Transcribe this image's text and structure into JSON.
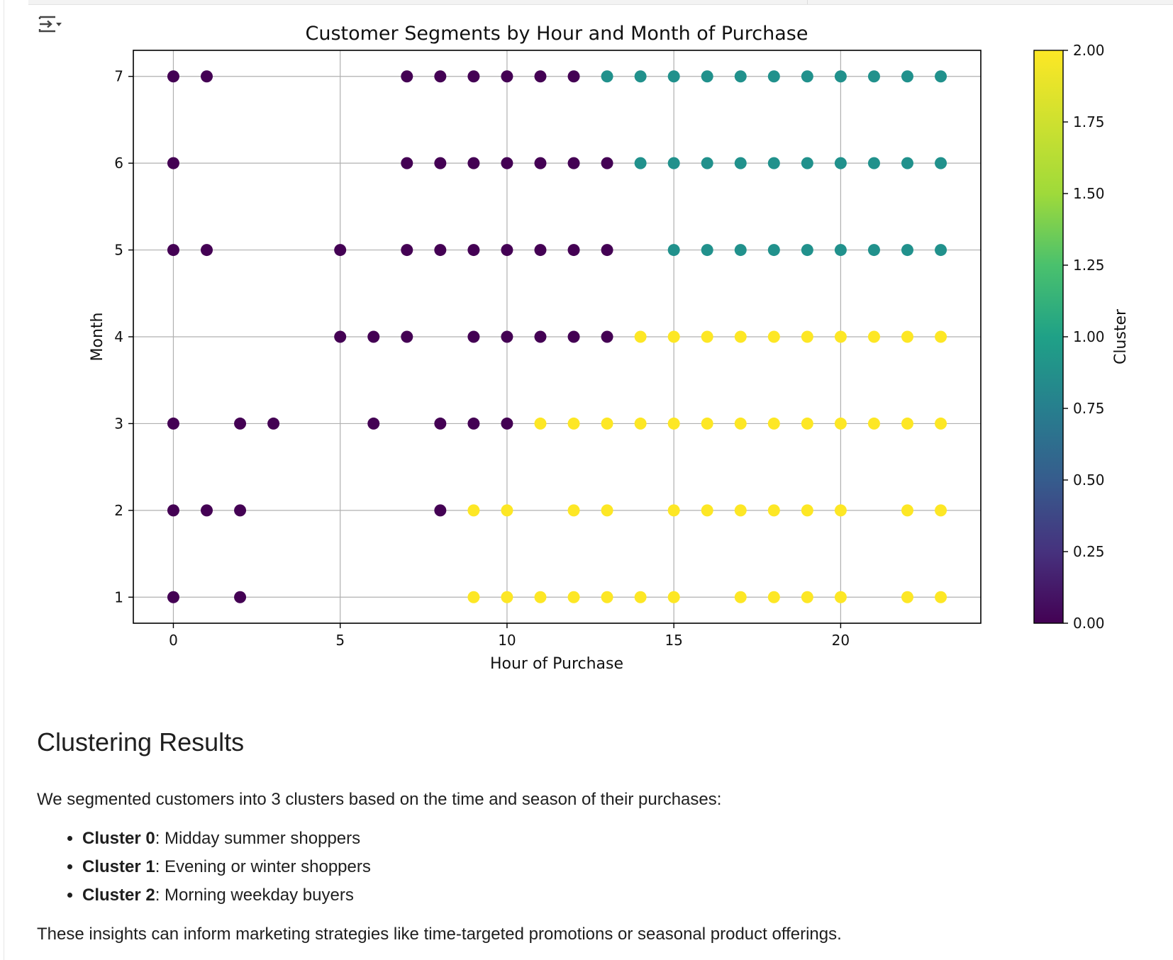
{
  "icons": {
    "output_toggle": "collapse-output-icon"
  },
  "chart_data": {
    "type": "scatter",
    "title": "Customer Segments by Hour and Month of Purchase",
    "xlabel": "Hour of Purchase",
    "ylabel": "Month",
    "xlim": [
      -1.2,
      24.2
    ],
    "ylim": [
      0.7,
      7.3
    ],
    "xticks": [
      0,
      5,
      10,
      15,
      20
    ],
    "yticks": [
      1,
      2,
      3,
      4,
      5,
      6,
      7
    ],
    "grid": true,
    "colorbar": {
      "label": "Cluster",
      "min": 0.0,
      "max": 2.0,
      "ticks": [
        "0.00",
        "0.25",
        "0.50",
        "0.75",
        "1.00",
        "1.25",
        "1.50",
        "1.75",
        "2.00"
      ],
      "colormap": "viridis"
    },
    "colors": {
      "cluster_0": "#440154",
      "cluster_1": "#21918c",
      "cluster_2": "#fde725"
    },
    "points": [
      [
        0,
        7,
        0
      ],
      [
        1,
        7,
        0
      ],
      [
        7,
        7,
        0
      ],
      [
        8,
        7,
        0
      ],
      [
        9,
        7,
        0
      ],
      [
        10,
        7,
        0
      ],
      [
        11,
        7,
        0
      ],
      [
        12,
        7,
        0
      ],
      [
        13,
        7,
        1
      ],
      [
        14,
        7,
        1
      ],
      [
        15,
        7,
        1
      ],
      [
        16,
        7,
        1
      ],
      [
        17,
        7,
        1
      ],
      [
        18,
        7,
        1
      ],
      [
        19,
        7,
        1
      ],
      [
        20,
        7,
        1
      ],
      [
        21,
        7,
        1
      ],
      [
        22,
        7,
        1
      ],
      [
        23,
        7,
        1
      ],
      [
        0,
        6,
        0
      ],
      [
        7,
        6,
        0
      ],
      [
        8,
        6,
        0
      ],
      [
        9,
        6,
        0
      ],
      [
        10,
        6,
        0
      ],
      [
        11,
        6,
        0
      ],
      [
        12,
        6,
        0
      ],
      [
        13,
        6,
        0
      ],
      [
        14,
        6,
        1
      ],
      [
        15,
        6,
        1
      ],
      [
        16,
        6,
        1
      ],
      [
        17,
        6,
        1
      ],
      [
        18,
        6,
        1
      ],
      [
        19,
        6,
        1
      ],
      [
        20,
        6,
        1
      ],
      [
        21,
        6,
        1
      ],
      [
        22,
        6,
        1
      ],
      [
        23,
        6,
        1
      ],
      [
        0,
        5,
        0
      ],
      [
        1,
        5,
        0
      ],
      [
        5,
        5,
        0
      ],
      [
        7,
        5,
        0
      ],
      [
        8,
        5,
        0
      ],
      [
        9,
        5,
        0
      ],
      [
        10,
        5,
        0
      ],
      [
        11,
        5,
        0
      ],
      [
        12,
        5,
        0
      ],
      [
        13,
        5,
        0
      ],
      [
        15,
        5,
        1
      ],
      [
        16,
        5,
        1
      ],
      [
        17,
        5,
        1
      ],
      [
        18,
        5,
        1
      ],
      [
        19,
        5,
        1
      ],
      [
        20,
        5,
        1
      ],
      [
        21,
        5,
        1
      ],
      [
        22,
        5,
        1
      ],
      [
        23,
        5,
        1
      ],
      [
        5,
        4,
        0
      ],
      [
        6,
        4,
        0
      ],
      [
        7,
        4,
        0
      ],
      [
        9,
        4,
        0
      ],
      [
        10,
        4,
        0
      ],
      [
        11,
        4,
        0
      ],
      [
        12,
        4,
        0
      ],
      [
        13,
        4,
        0
      ],
      [
        14,
        4,
        2
      ],
      [
        15,
        4,
        2
      ],
      [
        16,
        4,
        2
      ],
      [
        17,
        4,
        2
      ],
      [
        18,
        4,
        2
      ],
      [
        19,
        4,
        2
      ],
      [
        20,
        4,
        2
      ],
      [
        21,
        4,
        2
      ],
      [
        22,
        4,
        2
      ],
      [
        23,
        4,
        2
      ],
      [
        0,
        3,
        0
      ],
      [
        2,
        3,
        0
      ],
      [
        3,
        3,
        0
      ],
      [
        6,
        3,
        0
      ],
      [
        8,
        3,
        0
      ],
      [
        9,
        3,
        0
      ],
      [
        10,
        3,
        0
      ],
      [
        11,
        3,
        2
      ],
      [
        12,
        3,
        2
      ],
      [
        13,
        3,
        2
      ],
      [
        14,
        3,
        2
      ],
      [
        15,
        3,
        2
      ],
      [
        16,
        3,
        2
      ],
      [
        17,
        3,
        2
      ],
      [
        18,
        3,
        2
      ],
      [
        19,
        3,
        2
      ],
      [
        20,
        3,
        2
      ],
      [
        21,
        3,
        2
      ],
      [
        22,
        3,
        2
      ],
      [
        23,
        3,
        2
      ],
      [
        0,
        2,
        0
      ],
      [
        1,
        2,
        0
      ],
      [
        2,
        2,
        0
      ],
      [
        8,
        2,
        0
      ],
      [
        9,
        2,
        2
      ],
      [
        10,
        2,
        2
      ],
      [
        12,
        2,
        2
      ],
      [
        13,
        2,
        2
      ],
      [
        15,
        2,
        2
      ],
      [
        16,
        2,
        2
      ],
      [
        17,
        2,
        2
      ],
      [
        18,
        2,
        2
      ],
      [
        19,
        2,
        2
      ],
      [
        20,
        2,
        2
      ],
      [
        22,
        2,
        2
      ],
      [
        23,
        2,
        2
      ],
      [
        0,
        1,
        0
      ],
      [
        2,
        1,
        0
      ],
      [
        9,
        1,
        2
      ],
      [
        10,
        1,
        2
      ],
      [
        11,
        1,
        2
      ],
      [
        12,
        1,
        2
      ],
      [
        13,
        1,
        2
      ],
      [
        14,
        1,
        2
      ],
      [
        15,
        1,
        2
      ],
      [
        17,
        1,
        2
      ],
      [
        18,
        1,
        2
      ],
      [
        19,
        1,
        2
      ],
      [
        20,
        1,
        2
      ],
      [
        22,
        1,
        2
      ],
      [
        23,
        1,
        2
      ]
    ]
  },
  "markdown": {
    "heading": "Clustering Results",
    "intro": "We segmented customers into 3 clusters based on the time and season of their purchases:",
    "clusters": [
      {
        "name": "Cluster 0",
        "desc": ": Midday summer shoppers"
      },
      {
        "name": "Cluster 1",
        "desc": ": Evening or winter shoppers"
      },
      {
        "name": "Cluster 2",
        "desc": ": Morning weekday buyers"
      }
    ],
    "outro": "These insights can inform marketing strategies like time-targeted promotions or seasonal product offerings."
  }
}
